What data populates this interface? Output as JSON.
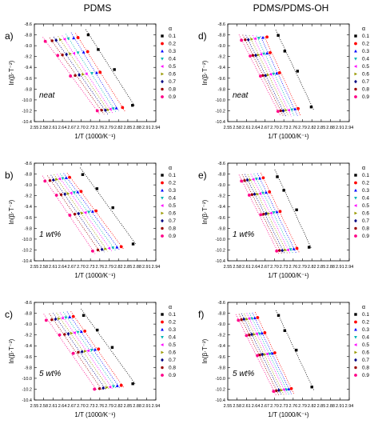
{
  "columns": [
    {
      "title": "PDMS"
    },
    {
      "title": "PDMS/PDMS-OH"
    }
  ],
  "common": {
    "xlabel": "1/T (1000/K⁻¹)",
    "ylabel": "ln(β·T⁻²)",
    "legend_title": "α",
    "alpha_levels": [
      "0.1",
      "0.2",
      "0.3",
      "0.4",
      "0.5",
      "0.6",
      "0.7",
      "0.8",
      "0.9"
    ],
    "series_colors": [
      "#000000",
      "#ff0000",
      "#0000ff",
      "#00b4b4",
      "#ff00ff",
      "#999900",
      "#000080",
      "#990000",
      "#ff0088"
    ],
    "series_markers": [
      "square",
      "circle",
      "triangle-up",
      "triangle-down",
      "triangle-left",
      "triangle-right",
      "diamond",
      "hexagon",
      "circle"
    ],
    "xticks": [
      "2.55",
      "2.58",
      "2.61",
      "2.64",
      "2.67",
      "2.70",
      "2.73",
      "2.76",
      "2.79",
      "2.82",
      "2.85",
      "2.88",
      "2.91",
      "2.94"
    ],
    "yticks": [
      "-8.6",
      "-8.8",
      "-9.0",
      "-9.2",
      "-9.4",
      "-9.6",
      "-9.8",
      "-10.0",
      "-10.2",
      "-10.4"
    ],
    "heating_rate_yvals": [
      -8.9,
      -9.15,
      -9.55,
      -10.2
    ],
    "grid": false,
    "legend_position": "right"
  },
  "chart_data": [
    {
      "panel": "a)",
      "annotation": "neat",
      "type": "scatter",
      "xlim": [
        2.55,
        2.94
      ],
      "ylim": [
        -10.4,
        -8.6
      ],
      "series": [
        {
          "name": "0.1",
          "x": [
            2.723,
            2.755,
            2.807,
            2.865
          ],
          "y": [
            -8.8,
            -9.07,
            -9.44,
            -10.1
          ]
        },
        {
          "name": "0.2",
          "x": [
            2.69,
            2.721,
            2.761,
            2.833
          ],
          "y": [
            -8.85,
            -9.11,
            -9.49,
            -10.14
          ]
        },
        {
          "name": "0.3",
          "x": [
            2.676,
            2.708,
            2.75,
            2.813
          ],
          "y": [
            -8.86,
            -9.12,
            -9.5,
            -10.15
          ]
        },
        {
          "name": "0.4",
          "x": [
            2.659,
            2.69,
            2.735,
            2.803
          ],
          "y": [
            -8.87,
            -9.13,
            -9.51,
            -10.16
          ]
        },
        {
          "name": "0.5",
          "x": [
            2.647,
            2.677,
            2.717,
            2.794
          ],
          "y": [
            -8.88,
            -9.14,
            -9.52,
            -10.17
          ]
        },
        {
          "name": "0.6",
          "x": [
            2.634,
            2.665,
            2.706,
            2.786
          ],
          "y": [
            -8.89,
            -9.15,
            -9.53,
            -10.18
          ]
        },
        {
          "name": "0.7",
          "x": [
            2.62,
            2.653,
            2.694,
            2.778
          ],
          "y": [
            -8.9,
            -9.16,
            -9.54,
            -10.19
          ]
        },
        {
          "name": "0.8",
          "x": [
            2.607,
            2.64,
            2.681,
            2.766
          ],
          "y": [
            -8.91,
            -9.17,
            -9.55,
            -10.19
          ]
        },
        {
          "name": "0.9",
          "x": [
            2.585,
            2.625,
            2.666,
            2.752
          ],
          "y": [
            -8.92,
            -9.18,
            -9.56,
            -10.2
          ]
        }
      ]
    },
    {
      "panel": "d)",
      "annotation": "neat",
      "type": "scatter",
      "xlim": [
        2.55,
        2.94
      ],
      "ylim": [
        -10.4,
        -8.6
      ],
      "series": [
        {
          "name": "0.1",
          "x": [
            2.712,
            2.733,
            2.774,
            2.818
          ],
          "y": [
            -8.81,
            -9.1,
            -9.47,
            -10.13
          ]
        },
        {
          "name": "0.2",
          "x": [
            2.676,
            2.686,
            2.716,
            2.776
          ],
          "y": [
            -8.84,
            -9.13,
            -9.5,
            -10.16
          ]
        },
        {
          "name": "0.3",
          "x": [
            2.663,
            2.676,
            2.707,
            2.766
          ],
          "y": [
            -8.85,
            -9.14,
            -9.51,
            -10.17
          ]
        },
        {
          "name": "0.4",
          "x": [
            2.65,
            2.666,
            2.697,
            2.756
          ],
          "y": [
            -8.86,
            -9.15,
            -9.52,
            -10.18
          ]
        },
        {
          "name": "0.5",
          "x": [
            2.638,
            2.657,
            2.688,
            2.746
          ],
          "y": [
            -8.87,
            -9.16,
            -9.53,
            -10.19
          ]
        },
        {
          "name": "0.6",
          "x": [
            2.627,
            2.648,
            2.679,
            2.737
          ],
          "y": [
            -8.88,
            -9.17,
            -9.54,
            -10.19
          ]
        },
        {
          "name": "0.7",
          "x": [
            2.616,
            2.64,
            2.671,
            2.728
          ],
          "y": [
            -8.89,
            -9.18,
            -9.55,
            -10.2
          ]
        },
        {
          "name": "0.8",
          "x": [
            2.606,
            2.631,
            2.663,
            2.72
          ],
          "y": [
            -8.89,
            -9.18,
            -9.55,
            -10.2
          ]
        },
        {
          "name": "0.9",
          "x": [
            2.594,
            2.622,
            2.655,
            2.711
          ],
          "y": [
            -8.9,
            -9.19,
            -9.56,
            -10.21
          ]
        }
      ]
    },
    {
      "panel": "b)",
      "annotation": "1 wt%",
      "type": "scatter",
      "xlim": [
        2.55,
        2.94
      ],
      "ylim": [
        -10.4,
        -8.6
      ],
      "series": [
        {
          "name": "0.1",
          "x": [
            2.705,
            2.751,
            2.802,
            2.867
          ],
          "y": [
            -8.81,
            -9.07,
            -9.42,
            -10.09
          ]
        },
        {
          "name": "0.2",
          "x": [
            2.663,
            2.7,
            2.748,
            2.829
          ],
          "y": [
            -8.86,
            -9.12,
            -9.48,
            -10.14
          ]
        },
        {
          "name": "0.3",
          "x": [
            2.652,
            2.689,
            2.737,
            2.815
          ],
          "y": [
            -8.87,
            -9.13,
            -9.49,
            -10.15
          ]
        },
        {
          "name": "0.4",
          "x": [
            2.641,
            2.678,
            2.725,
            2.802
          ],
          "y": [
            -8.88,
            -9.14,
            -9.5,
            -10.16
          ]
        },
        {
          "name": "0.5",
          "x": [
            2.631,
            2.668,
            2.714,
            2.79
          ],
          "y": [
            -8.89,
            -9.15,
            -9.51,
            -10.17
          ]
        },
        {
          "name": "0.6",
          "x": [
            2.621,
            2.658,
            2.703,
            2.778
          ],
          "y": [
            -8.9,
            -9.16,
            -9.52,
            -10.18
          ]
        },
        {
          "name": "0.7",
          "x": [
            2.611,
            2.648,
            2.692,
            2.767
          ],
          "y": [
            -8.91,
            -9.17,
            -9.53,
            -10.19
          ]
        },
        {
          "name": "0.8",
          "x": [
            2.6,
            2.636,
            2.68,
            2.754
          ],
          "y": [
            -8.92,
            -9.18,
            -9.54,
            -10.2
          ]
        },
        {
          "name": "0.9",
          "x": [
            2.584,
            2.621,
            2.664,
            2.737
          ],
          "y": [
            -8.93,
            -9.19,
            -9.56,
            -10.22
          ]
        }
      ]
    },
    {
      "panel": "e)",
      "annotation": "1 wt%",
      "type": "scatter",
      "xlim": [
        2.55,
        2.94
      ],
      "ylim": [
        -10.4,
        -8.6
      ],
      "series": [
        {
          "name": "0.1",
          "x": [
            2.709,
            2.73,
            2.771,
            2.811
          ],
          "y": [
            -8.85,
            -9.1,
            -9.46,
            -10.15
          ]
        },
        {
          "name": "0.2",
          "x": [
            2.664,
            2.684,
            2.718,
            2.772
          ],
          "y": [
            -8.87,
            -9.13,
            -9.49,
            -10.17
          ]
        },
        {
          "name": "0.3",
          "x": [
            2.653,
            2.673,
            2.708,
            2.762
          ],
          "y": [
            -8.88,
            -9.14,
            -9.5,
            -10.18
          ]
        },
        {
          "name": "0.4",
          "x": [
            2.642,
            2.663,
            2.698,
            2.752
          ],
          "y": [
            -8.89,
            -9.15,
            -9.51,
            -10.19
          ]
        },
        {
          "name": "0.5",
          "x": [
            2.632,
            2.654,
            2.689,
            2.743
          ],
          "y": [
            -8.9,
            -9.16,
            -9.52,
            -10.2
          ]
        },
        {
          "name": "0.6",
          "x": [
            2.622,
            2.645,
            2.681,
            2.734
          ],
          "y": [
            -8.91,
            -9.17,
            -9.53,
            -10.2
          ]
        },
        {
          "name": "0.7",
          "x": [
            2.613,
            2.636,
            2.673,
            2.725
          ],
          "y": [
            -8.91,
            -9.17,
            -9.53,
            -10.21
          ]
        },
        {
          "name": "0.8",
          "x": [
            2.604,
            2.628,
            2.665,
            2.716
          ],
          "y": [
            -8.92,
            -9.18,
            -9.54,
            -10.21
          ]
        },
        {
          "name": "0.9",
          "x": [
            2.594,
            2.619,
            2.656,
            2.707
          ],
          "y": [
            -8.93,
            -9.19,
            -9.55,
            -10.22
          ]
        }
      ]
    },
    {
      "panel": "c)",
      "annotation": "5 wt%",
      "type": "scatter",
      "xlim": [
        2.55,
        2.94
      ],
      "ylim": [
        -10.4,
        -8.6
      ],
      "series": [
        {
          "name": "0.1",
          "x": [
            2.708,
            2.752,
            2.8,
            2.866
          ],
          "y": [
            -8.84,
            -9.11,
            -9.43,
            -10.1
          ]
        },
        {
          "name": "0.2",
          "x": [
            2.675,
            2.712,
            2.756,
            2.829
          ],
          "y": [
            -8.86,
            -9.13,
            -9.46,
            -10.13
          ]
        },
        {
          "name": "0.3",
          "x": [
            2.663,
            2.701,
            2.745,
            2.816
          ],
          "y": [
            -8.87,
            -9.14,
            -9.47,
            -10.14
          ]
        },
        {
          "name": "0.4",
          "x": [
            2.651,
            2.69,
            2.734,
            2.804
          ],
          "y": [
            -8.88,
            -9.15,
            -9.48,
            -10.15
          ]
        },
        {
          "name": "0.5",
          "x": [
            2.64,
            2.679,
            2.723,
            2.793
          ],
          "y": [
            -8.89,
            -9.16,
            -9.49,
            -10.16
          ]
        },
        {
          "name": "0.6",
          "x": [
            2.629,
            2.669,
            2.713,
            2.782
          ],
          "y": [
            -8.9,
            -9.17,
            -9.5,
            -10.17
          ]
        },
        {
          "name": "0.7",
          "x": [
            2.618,
            2.659,
            2.703,
            2.771
          ],
          "y": [
            -8.91,
            -9.18,
            -9.51,
            -10.18
          ]
        },
        {
          "name": "0.8",
          "x": [
            2.606,
            2.647,
            2.691,
            2.759
          ],
          "y": [
            -8.92,
            -9.19,
            -9.52,
            -10.19
          ]
        },
        {
          "name": "0.9",
          "x": [
            2.588,
            2.631,
            2.675,
            2.743
          ],
          "y": [
            -8.93,
            -9.2,
            -9.54,
            -10.2
          ]
        }
      ]
    },
    {
      "panel": "f)",
      "annotation": "5 wt%",
      "type": "scatter",
      "xlim": [
        2.55,
        2.94
      ],
      "ylim": [
        -10.4,
        -8.6
      ],
      "series": [
        {
          "name": "0.1",
          "x": [
            2.713,
            2.733,
            2.77,
            2.82
          ],
          "y": [
            -8.84,
            -9.12,
            -9.48,
            -10.16
          ]
        },
        {
          "name": "0.2",
          "x": [
            2.646,
            2.669,
            2.701,
            2.754
          ],
          "y": [
            -8.88,
            -9.16,
            -9.53,
            -10.19
          ]
        },
        {
          "name": "0.3",
          "x": [
            2.637,
            2.66,
            2.693,
            2.746
          ],
          "y": [
            -8.89,
            -9.17,
            -9.54,
            -10.2
          ]
        },
        {
          "name": "0.4",
          "x": [
            2.628,
            2.652,
            2.685,
            2.738
          ],
          "y": [
            -8.9,
            -9.18,
            -9.55,
            -10.21
          ]
        },
        {
          "name": "0.5",
          "x": [
            2.619,
            2.643,
            2.677,
            2.73
          ],
          "y": [
            -8.9,
            -9.18,
            -9.55,
            -10.21
          ]
        },
        {
          "name": "0.6",
          "x": [
            2.611,
            2.635,
            2.669,
            2.722
          ],
          "y": [
            -8.91,
            -9.19,
            -9.56,
            -10.22
          ]
        },
        {
          "name": "0.7",
          "x": [
            2.602,
            2.627,
            2.661,
            2.714
          ],
          "y": [
            -8.91,
            -9.19,
            -9.56,
            -10.22
          ]
        },
        {
          "name": "0.8",
          "x": [
            2.594,
            2.619,
            2.653,
            2.706
          ],
          "y": [
            -8.92,
            -9.2,
            -9.57,
            -10.23
          ]
        },
        {
          "name": "0.9",
          "x": [
            2.584,
            2.61,
            2.645,
            2.697
          ],
          "y": [
            -8.93,
            -9.21,
            -9.58,
            -10.24
          ]
        }
      ]
    }
  ]
}
